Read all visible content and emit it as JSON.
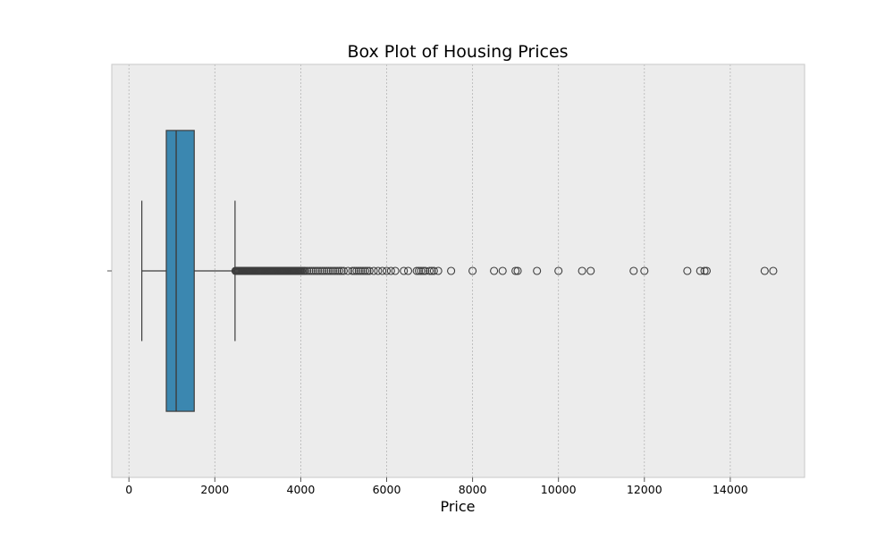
{
  "chart_data": {
    "type": "box",
    "title": "Box Plot of Housing Prices",
    "xlabel": "Price",
    "ylabel": "",
    "orientation": "horizontal",
    "xlim": [
      -400,
      15730
    ],
    "xticks": [
      0,
      2000,
      4000,
      6000,
      8000,
      10000,
      12000,
      14000
    ],
    "xtick_labels": [
      "0",
      "2000",
      "4000",
      "6000",
      "8000",
      "10000",
      "12000",
      "14000"
    ],
    "grid": true,
    "box": {
      "whisker_low": 300,
      "q1": 870,
      "median": 1100,
      "q3": 1520,
      "whisker_high": 2470
    },
    "outliers": [
      2480,
      2500,
      2520,
      2540,
      2560,
      2580,
      2600,
      2620,
      2640,
      2660,
      2680,
      2700,
      2720,
      2740,
      2760,
      2780,
      2800,
      2820,
      2840,
      2860,
      2880,
      2900,
      2920,
      2940,
      2960,
      2980,
      3000,
      3020,
      3040,
      3060,
      3080,
      3100,
      3120,
      3140,
      3160,
      3180,
      3200,
      3220,
      3240,
      3260,
      3280,
      3300,
      3320,
      3340,
      3360,
      3380,
      3400,
      3420,
      3440,
      3460,
      3480,
      3500,
      3520,
      3540,
      3560,
      3580,
      3600,
      3620,
      3640,
      3660,
      3680,
      3700,
      3720,
      3740,
      3760,
      3780,
      3800,
      3820,
      3840,
      3860,
      3880,
      3900,
      3920,
      3940,
      3960,
      3980,
      4000,
      4020,
      4050,
      4080,
      4100,
      4150,
      4200,
      4250,
      4300,
      4350,
      4400,
      4450,
      4500,
      4550,
      4600,
      4650,
      4700,
      4750,
      4800,
      4850,
      4900,
      4950,
      5000,
      5100,
      5200,
      5250,
      5300,
      5350,
      5400,
      5450,
      5500,
      5550,
      5600,
      5700,
      5800,
      5900,
      6000,
      6100,
      6200,
      6400,
      6500,
      6700,
      6750,
      6800,
      6850,
      6900,
      7000,
      7050,
      7100,
      7200,
      7500,
      8000,
      8500,
      8700,
      9000,
      9050,
      9500,
      10000,
      10550,
      10750,
      11750,
      12000,
      13000,
      13300,
      13400,
      13450,
      14800,
      15000
    ],
    "colors": {
      "box_fill": "#3b87b0",
      "box_edge": "#3d3d3d",
      "plot_background": "#ececec",
      "grid": "#b5b5b5",
      "frame": "#c8c8c8"
    }
  }
}
